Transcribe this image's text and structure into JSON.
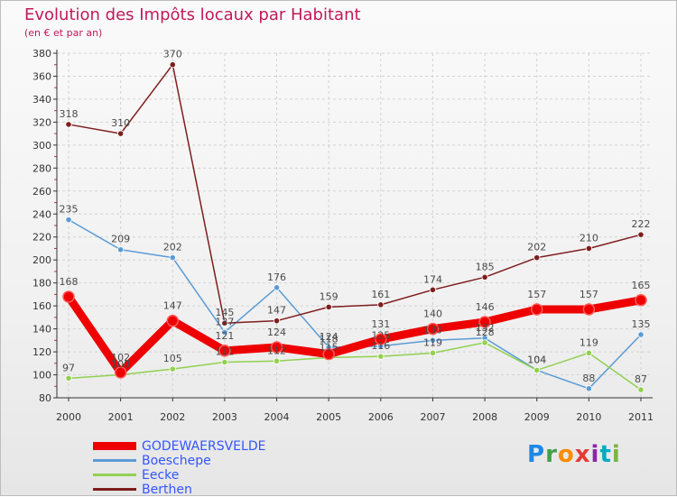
{
  "header": {
    "title": "Evolution des Impôts locaux par Habitant",
    "subtitle": "(en € et par an)"
  },
  "brand": {
    "letters": [
      {
        "ch": "P",
        "color": "#1e88e5"
      },
      {
        "ch": "r",
        "color": "#43a047"
      },
      {
        "ch": "o",
        "color": "#fb8c00"
      },
      {
        "ch": "x",
        "color": "#e53935"
      },
      {
        "ch": "i",
        "color": "#8e24aa"
      },
      {
        "ch": "t",
        "color": "#00acc1"
      },
      {
        "ch": "i",
        "color": "#7cb342"
      }
    ]
  },
  "chart_data": {
    "type": "line",
    "title": "Evolution des Impôts locaux par Habitant",
    "subtitle": "(en € et par an)",
    "x": [
      "2000",
      "2001",
      "2002",
      "2003",
      "2004",
      "2005",
      "2006",
      "2007",
      "2008",
      "2009",
      "2010",
      "2011"
    ],
    "ylim": [
      80,
      380
    ],
    "yticks": [
      80,
      100,
      120,
      140,
      160,
      180,
      200,
      220,
      240,
      260,
      280,
      300,
      320,
      340,
      360,
      380
    ],
    "grid": true,
    "legend": "bottom-left",
    "series": [
      {
        "name": "GODEWAERSVELDE",
        "color": "#ee0000",
        "emphasis": true,
        "values": [
          168,
          102,
          147,
          121,
          124,
          118,
          131,
          140,
          146,
          157,
          157,
          165
        ],
        "labels": [
          "168",
          "102",
          "147",
          "121",
          "124",
          "118",
          "131",
          "140",
          "146",
          "157",
          "157",
          "165"
        ]
      },
      {
        "name": "Boeschepe",
        "color": "#5b9bd5",
        "emphasis": false,
        "values": [
          235,
          209,
          202,
          137,
          176,
          124,
          125,
          130,
          132,
          104,
          88,
          135
        ],
        "labels": [
          "235",
          "209",
          "202",
          "137",
          "176",
          "124",
          "125",
          "130",
          "132",
          "104",
          "88",
          "135"
        ]
      },
      {
        "name": "Eecke",
        "color": "#92d050",
        "emphasis": false,
        "values": [
          97,
          100,
          105,
          111,
          112,
          115,
          116,
          119,
          128,
          104,
          119,
          87
        ],
        "labels": [
          "97",
          "100",
          "105",
          "111",
          "112",
          "115",
          "116",
          "119",
          "128",
          "104",
          "119",
          "87"
        ]
      },
      {
        "name": "Berthen",
        "color": "#7f1d1d",
        "emphasis": false,
        "values": [
          318,
          310,
          370,
          145,
          147,
          159,
          161,
          174,
          185,
          202,
          210,
          222
        ],
        "labels": [
          "318",
          "310",
          "370",
          "145",
          "147",
          "159",
          "161",
          "174",
          "185",
          "202",
          "210",
          "222"
        ]
      }
    ]
  }
}
